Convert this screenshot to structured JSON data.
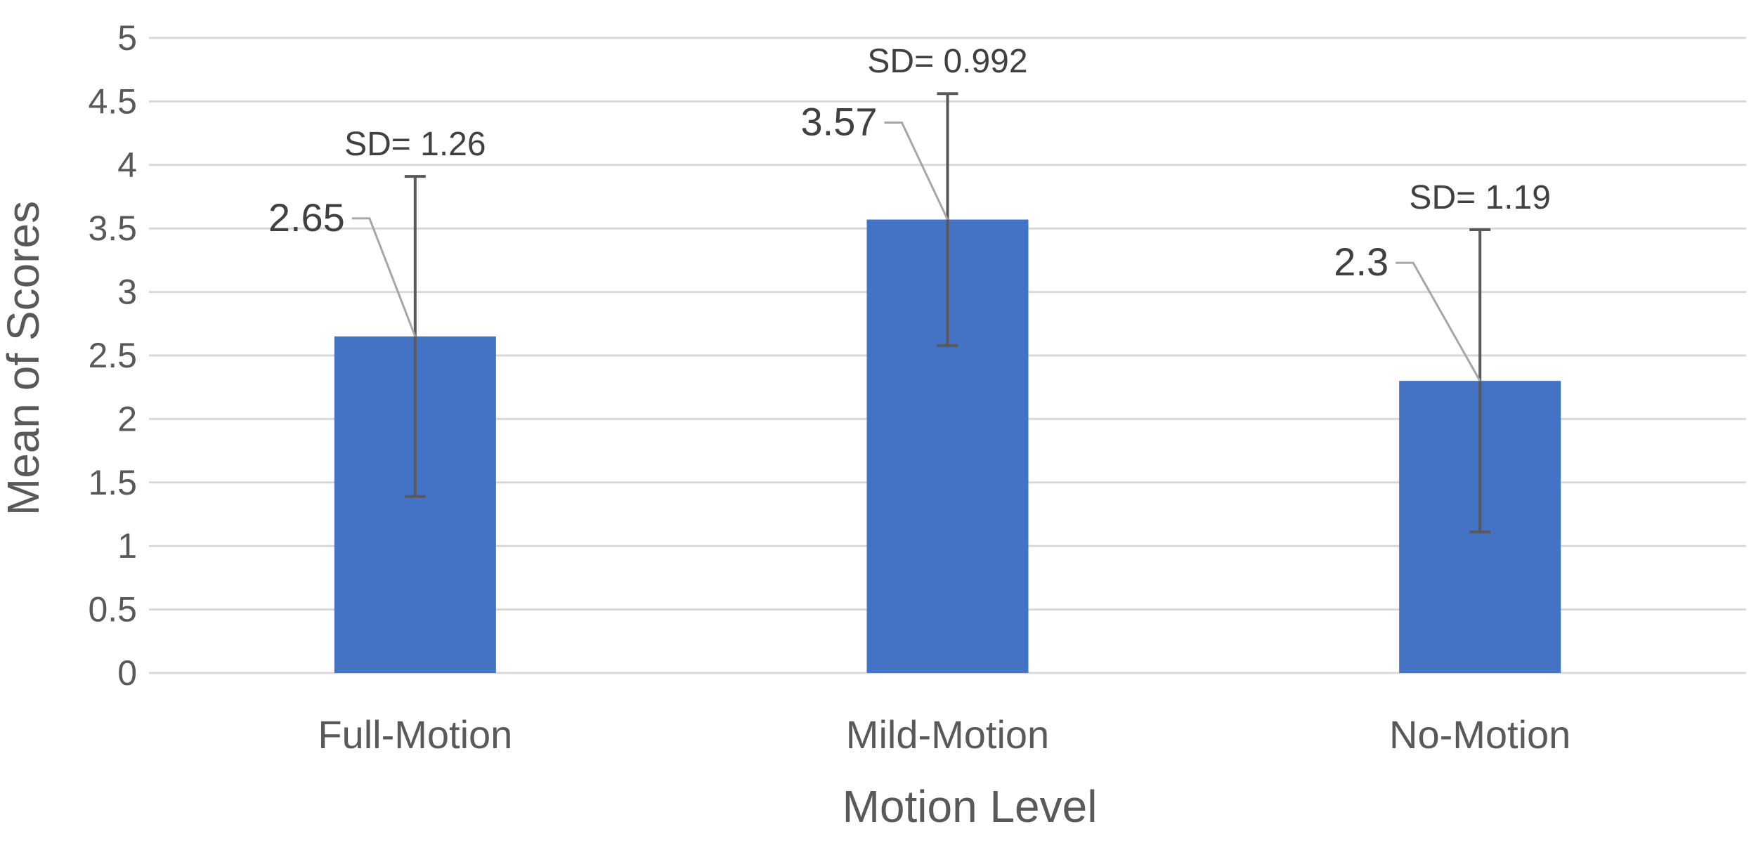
{
  "chart_data": {
    "type": "bar",
    "title": "",
    "xlabel": "Motion Level",
    "ylabel": "Mean of Scores",
    "ylim": [
      0,
      5
    ],
    "yticks": [
      "0",
      "0.5",
      "1",
      "1.5",
      "2",
      "2.5",
      "3",
      "3.5",
      "4",
      "4.5",
      "5"
    ],
    "categories": [
      "Full-Motion",
      "Mild-Motion",
      "No-Motion"
    ],
    "values": [
      2.65,
      3.57,
      2.3
    ],
    "value_labels": [
      "2.65",
      "3.57",
      "2.3"
    ],
    "error_bars": [
      1.26,
      0.992,
      1.19
    ],
    "sd_labels": [
      "SD= 1.26",
      "SD= 0.992",
      "SD= 1.19"
    ],
    "grid": true,
    "legend": "none",
    "bar_color": "#4472C4"
  }
}
